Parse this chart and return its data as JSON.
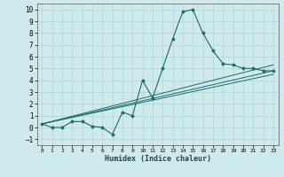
{
  "xlabel": "Humidex (Indice chaleur)",
  "ylabel": "",
  "background_color": "#ceeaea",
  "grid_color": "#aed4d4",
  "line_color": "#1a6b6b",
  "xlim": [
    -0.5,
    23.5
  ],
  "ylim": [
    -1.5,
    10.5
  ],
  "xticks": [
    0,
    1,
    2,
    3,
    4,
    5,
    6,
    7,
    8,
    9,
    10,
    11,
    12,
    13,
    14,
    15,
    16,
    17,
    18,
    19,
    20,
    21,
    22,
    23
  ],
  "yticks": [
    -1,
    0,
    1,
    2,
    3,
    4,
    5,
    6,
    7,
    8,
    9,
    10
  ],
  "series": [
    {
      "x": [
        0,
        1,
        2,
        3,
        4,
        5,
        6,
        7,
        8,
        9,
        10,
        11,
        12,
        13,
        14,
        15,
        16,
        17,
        18,
        19,
        20,
        21,
        22,
        23
      ],
      "y": [
        0.3,
        0.0,
        0.0,
        0.5,
        0.5,
        0.1,
        0.0,
        -0.6,
        1.3,
        1.0,
        4.0,
        2.5,
        5.0,
        7.5,
        9.8,
        10.0,
        8.0,
        6.5,
        5.4,
        5.3,
        5.0,
        5.0,
        4.8,
        4.8
      ]
    },
    {
      "x": [
        0,
        23
      ],
      "y": [
        0.3,
        5.3
      ]
    },
    {
      "x": [
        0,
        23
      ],
      "y": [
        0.3,
        4.8
      ]
    },
    {
      "x": [
        0,
        23
      ],
      "y": [
        0.3,
        4.5
      ]
    }
  ]
}
